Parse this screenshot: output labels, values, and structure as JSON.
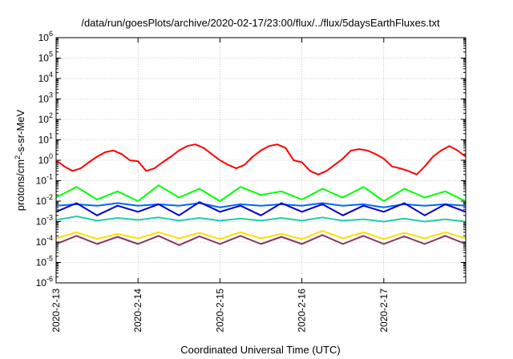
{
  "chart_data": {
    "type": "line",
    "title": "/data/run/goesPlots/archive/2020-02-17/23:00/flux/../flux/5daysEarthFluxes.txt",
    "xlabel": "Coordinated Universal Time (UTC)",
    "ylabel": {
      "base": "protons/cm",
      "sup": "2",
      "rest": "-s-sr-MeV"
    },
    "y_scale": "log",
    "ylim": [
      "1e-6",
      "1e6"
    ],
    "y_ticks": [
      {
        "base": "10",
        "exp": "-6"
      },
      {
        "base": "10",
        "exp": "-5"
      },
      {
        "base": "10",
        "exp": "-4"
      },
      {
        "base": "10",
        "exp": "-3"
      },
      {
        "base": "10",
        "exp": "-2"
      },
      {
        "base": "10",
        "exp": "-1"
      },
      {
        "base": "10",
        "exp": "0"
      },
      {
        "base": "10",
        "exp": "1"
      },
      {
        "base": "10",
        "exp": "2"
      },
      {
        "base": "10",
        "exp": "3"
      },
      {
        "base": "10",
        "exp": "4"
      },
      {
        "base": "10",
        "exp": "5"
      },
      {
        "base": "10",
        "exp": "6"
      }
    ],
    "x_range": [
      "2020-02-13 00:00",
      "2020-02-18 00:00"
    ],
    "x_ticks": [
      "2020-2-13",
      "2020-2-14",
      "2020-2-15",
      "2020-2-16",
      "2020-2-17"
    ],
    "grid": true,
    "series": [
      {
        "color": "#ff0000",
        "x_days": [
          0,
          0.1,
          0.2,
          0.3,
          0.4,
          0.5,
          0.6,
          0.7,
          0.8,
          0.9,
          1.0,
          1.1,
          1.2,
          1.3,
          1.4,
          1.5,
          1.6,
          1.7,
          1.8,
          1.9,
          2.0,
          2.1,
          2.2,
          2.3,
          2.4,
          2.5,
          2.6,
          2.7,
          2.8,
          2.9,
          3.0,
          3.1,
          3.2,
          3.3,
          3.4,
          3.5,
          3.6,
          3.7,
          3.8,
          3.9,
          4.0,
          4.1,
          4.2,
          4.3,
          4.4,
          4.5,
          4.6,
          4.7,
          4.8,
          4.9,
          5.0
        ],
        "y": [
          1.0,
          0.5,
          0.3,
          0.4,
          0.8,
          1.5,
          2.5,
          3.0,
          2.0,
          1.0,
          0.9,
          0.3,
          0.4,
          0.8,
          1.5,
          3.0,
          5.0,
          6.0,
          4.0,
          2.0,
          1.0,
          0.6,
          0.4,
          0.6,
          1.5,
          3.0,
          5.0,
          6.0,
          4.0,
          1.0,
          0.8,
          0.3,
          0.2,
          0.3,
          0.6,
          1.2,
          3.0,
          3.5,
          3.0,
          2.0,
          1.2,
          0.5,
          0.4,
          0.3,
          0.2,
          0.5,
          1.5,
          3.0,
          5.0,
          3.0,
          1.5
        ]
      },
      {
        "color": "#00ff00",
        "x_days": [
          0,
          0.25,
          0.5,
          0.75,
          1.0,
          1.25,
          1.5,
          1.75,
          2.0,
          2.25,
          2.5,
          2.75,
          3.0,
          3.25,
          3.5,
          3.75,
          4.0,
          4.25,
          4.5,
          4.75,
          5.0
        ],
        "y": [
          0.015,
          0.05,
          0.012,
          0.03,
          0.01,
          0.06,
          0.015,
          0.04,
          0.01,
          0.05,
          0.02,
          0.03,
          0.012,
          0.04,
          0.015,
          0.05,
          0.01,
          0.04,
          0.015,
          0.03,
          0.01
        ]
      },
      {
        "color": "#0066ff",
        "x_days": [
          0,
          0.25,
          0.5,
          0.75,
          1.0,
          1.25,
          1.5,
          1.75,
          2.0,
          2.25,
          2.5,
          2.75,
          3.0,
          3.25,
          3.5,
          3.75,
          4.0,
          4.25,
          4.5,
          4.75,
          5.0
        ],
        "y": [
          0.006,
          0.007,
          0.006,
          0.008,
          0.006,
          0.007,
          0.006,
          0.008,
          0.005,
          0.007,
          0.006,
          0.007,
          0.006,
          0.008,
          0.006,
          0.007,
          0.005,
          0.007,
          0.006,
          0.007,
          0.006
        ]
      },
      {
        "color": "#0000cc",
        "x_days": [
          0,
          0.25,
          0.5,
          0.75,
          1.0,
          1.25,
          1.5,
          1.75,
          2.0,
          2.25,
          2.5,
          2.75,
          3.0,
          3.25,
          3.5,
          3.75,
          4.0,
          4.25,
          4.5,
          4.75,
          5.0
        ],
        "y": [
          0.003,
          0.008,
          0.002,
          0.006,
          0.003,
          0.007,
          0.002,
          0.009,
          0.003,
          0.006,
          0.002,
          0.008,
          0.003,
          0.007,
          0.002,
          0.006,
          0.003,
          0.008,
          0.002,
          0.007,
          0.003
        ]
      },
      {
        "color": "#22ccaa",
        "x_days": [
          0,
          0.25,
          0.5,
          0.75,
          1.0,
          1.25,
          1.5,
          1.75,
          2.0,
          2.25,
          2.5,
          2.75,
          3.0,
          3.25,
          3.5,
          3.75,
          4.0,
          4.25,
          4.5,
          4.75,
          5.0
        ],
        "y": [
          0.0012,
          0.0018,
          0.0011,
          0.0015,
          0.0012,
          0.0016,
          0.0011,
          0.0015,
          0.0011,
          0.0014,
          0.0011,
          0.0015,
          0.0011,
          0.0016,
          0.0011,
          0.0013,
          0.001,
          0.0014,
          0.001,
          0.0013,
          0.001
        ]
      },
      {
        "color": "#ffdd00",
        "x_days": [
          0,
          0.25,
          0.5,
          0.75,
          1.0,
          1.25,
          1.5,
          1.75,
          2.0,
          2.25,
          2.5,
          2.75,
          3.0,
          3.25,
          3.5,
          3.75,
          4.0,
          4.25,
          4.5,
          4.75,
          5.0
        ],
        "y": [
          0.00015,
          0.0003,
          0.00014,
          0.00025,
          0.00015,
          0.0003,
          0.00015,
          0.00028,
          0.00014,
          0.0003,
          0.00015,
          0.00025,
          0.00014,
          0.00035,
          0.00015,
          0.0003,
          0.00014,
          0.00028,
          0.00015,
          0.0003,
          0.00015
        ]
      },
      {
        "color": "#883366",
        "x_days": [
          0,
          0.25,
          0.5,
          0.75,
          1.0,
          1.25,
          1.5,
          1.75,
          2.0,
          2.25,
          2.5,
          2.75,
          3.0,
          3.25,
          3.5,
          3.75,
          4.0,
          4.25,
          4.5,
          4.75,
          5.0
        ],
        "y": [
          8e-05,
          0.0002,
          8e-05,
          0.00018,
          8e-05,
          0.0002,
          7e-05,
          0.00019,
          8e-05,
          0.0002,
          8e-05,
          0.00018,
          8e-05,
          0.00022,
          8e-05,
          0.0002,
          8e-05,
          0.00019,
          8e-05,
          0.0002,
          8e-05
        ]
      }
    ]
  }
}
